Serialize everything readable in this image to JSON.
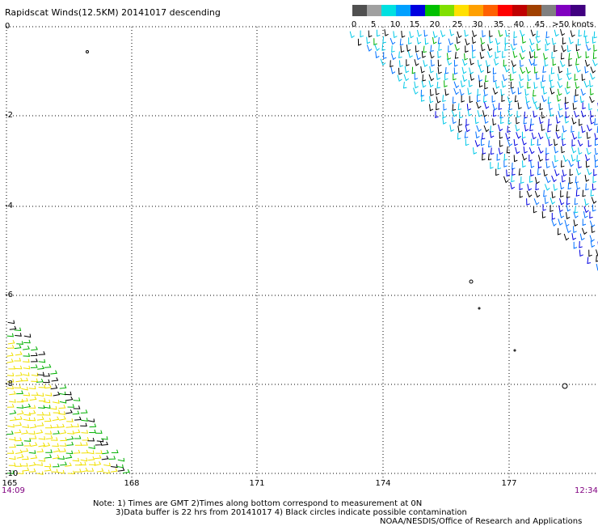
{
  "title": "Rapidscat Winds(12.5KM) 20141017 descending",
  "colorbar": {
    "labels": [
      "0",
      "5",
      "10",
      "15",
      "20",
      "25",
      "30",
      "35",
      "40",
      "45",
      ">50 knots"
    ],
    "colors": [
      "#505050",
      "#a0a0a0",
      "#00e0e0",
      "#00a0ff",
      "#0000e0",
      "#00c000",
      "#80e000",
      "#ffe000",
      "#ffa000",
      "#ff6000",
      "#ff0000",
      "#c00000",
      "#a04000",
      "#808080",
      "#8000c0",
      "#400080"
    ]
  },
  "axes": {
    "y_labels": [
      "0",
      "-2",
      "-4",
      "-6",
      "-8",
      "-10"
    ],
    "x_labels": [
      "165",
      "168",
      "171",
      "174",
      "177"
    ]
  },
  "times": {
    "left": "14:09",
    "right": "12:34"
  },
  "notes": {
    "line1": "Note: 1) Times are GMT 2)Times along bottom correspond to measurement at 0N",
    "line2": "3)Data buffer is 22 hrs from 20141017 4) Black circles indicate possible contamination"
  },
  "credit": "NOAA/NESDIS/Office of Research and Applications",
  "colors": {
    "grid": "#000000",
    "time_text": "#800080",
    "wind_black": "#000000",
    "wind_blue": "#0000e0",
    "wind_mid_blue": "#0070ff",
    "wind_cyan": "#00c8e8",
    "wind_green": "#00b000",
    "wind_yellow": "#f0e000"
  }
}
